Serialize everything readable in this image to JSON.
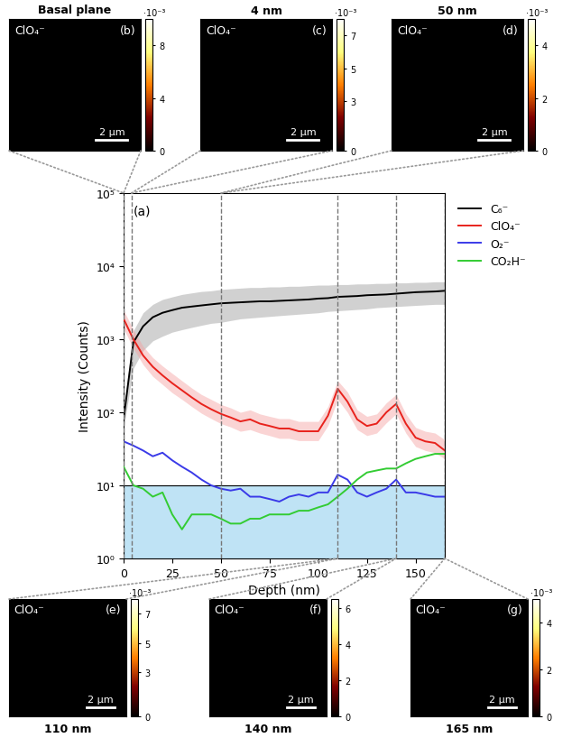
{
  "chart_data": {
    "type": "line",
    "label": "(a)",
    "x_label": "Depth (nm)",
    "y_label": "Intensity (Counts)",
    "log": "y",
    "legend": "right",
    "xlim": [
      0,
      165
    ],
    "xticks": [
      0,
      25,
      50,
      75,
      100,
      125,
      150
    ],
    "ylim": [
      1,
      100000
    ],
    "yticks": [
      {
        "value": 1,
        "label": "10⁰"
      },
      {
        "value": 10,
        "label": "10¹"
      },
      {
        "value": 100,
        "label": "10²"
      },
      {
        "value": 1000,
        "label": "10³"
      },
      {
        "value": 10000,
        "label": "10⁴"
      },
      {
        "value": 100000,
        "label": "10⁵"
      }
    ],
    "shaded_band": [
      1,
      10
    ],
    "shaded_color": "#bfe3f5",
    "x": [
      0,
      5,
      10,
      15,
      20,
      25,
      30,
      35,
      40,
      45,
      50,
      55,
      60,
      65,
      70,
      75,
      80,
      85,
      90,
      95,
      100,
      105,
      110,
      115,
      120,
      125,
      130,
      135,
      140,
      145,
      150,
      155,
      160,
      165
    ],
    "series": [
      {
        "name": "C₆⁻",
        "color": "#000000",
        "band_color": "#9a9a9a",
        "values": [
          80,
          900,
          1500,
          2000,
          2300,
          2500,
          2700,
          2800,
          2900,
          3000,
          3100,
          3150,
          3200,
          3250,
          3300,
          3300,
          3350,
          3400,
          3450,
          3500,
          3600,
          3650,
          3800,
          3850,
          3900,
          4000,
          4050,
          4100,
          4200,
          4300,
          4400,
          4450,
          4500,
          4600
        ],
        "lower": [
          60,
          400,
          700,
          950,
          1100,
          1250,
          1350,
          1450,
          1550,
          1650,
          1700,
          1800,
          1900,
          1950,
          2000,
          2050,
          2100,
          2150,
          2200,
          2250,
          2300,
          2400,
          2450,
          2500,
          2550,
          2600,
          2700,
          2750,
          2800,
          2850,
          2900,
          2950,
          3000,
          3000
        ],
        "upper": [
          100,
          1300,
          2300,
          3000,
          3500,
          3800,
          4100,
          4300,
          4500,
          4600,
          4800,
          4900,
          5000,
          5100,
          5100,
          5200,
          5200,
          5300,
          5300,
          5400,
          5500,
          5500,
          5600,
          5600,
          5700,
          5700,
          5800,
          5800,
          5900,
          5900,
          6000,
          6000,
          6100,
          6100
        ]
      },
      {
        "name": "ClO₄⁻",
        "color": "#e8221c",
        "band_color": "#f5a0a0",
        "values": [
          1900,
          1000,
          600,
          420,
          320,
          250,
          200,
          160,
          130,
          110,
          95,
          85,
          75,
          80,
          70,
          65,
          60,
          60,
          55,
          55,
          55,
          90,
          210,
          140,
          80,
          65,
          70,
          100,
          130,
          70,
          45,
          40,
          38,
          30
        ],
        "lower": [
          1400,
          750,
          450,
          310,
          240,
          185,
          150,
          120,
          97,
          82,
          70,
          63,
          55,
          58,
          52,
          48,
          44,
          44,
          41,
          41,
          41,
          66,
          150,
          100,
          58,
          48,
          52,
          72,
          95,
          52,
          34,
          30,
          28,
          23
        ],
        "upper": [
          2500,
          1350,
          800,
          560,
          430,
          340,
          270,
          215,
          175,
          150,
          128,
          115,
          100,
          108,
          95,
          88,
          82,
          82,
          75,
          75,
          75,
          120,
          270,
          190,
          108,
          88,
          95,
          135,
          175,
          95,
          62,
          55,
          52,
          42
        ]
      },
      {
        "name": "O₂⁻",
        "color": "#3a3ae8",
        "values": [
          40,
          35,
          30,
          25,
          28,
          22,
          18,
          15,
          12,
          10,
          9,
          8.5,
          9,
          7,
          7,
          6.5,
          6,
          7,
          7.5,
          7,
          8,
          8,
          14,
          12,
          8,
          7,
          8,
          9,
          12,
          8,
          8,
          7.5,
          7,
          7
        ]
      },
      {
        "name": "CO₂H⁻",
        "color": "#33cc33",
        "values": [
          18,
          10,
          9,
          7,
          8,
          4,
          2.5,
          4,
          4,
          4,
          3.5,
          3,
          3,
          3.5,
          3.5,
          4,
          4,
          4,
          4.5,
          4.5,
          5,
          5.5,
          7,
          9,
          12,
          15,
          16,
          17,
          17,
          20,
          23,
          25,
          27,
          27
        ]
      }
    ]
  },
  "panels": [
    {
      "label": "(b)",
      "title": "Basal plane",
      "species": "ClO₄⁻",
      "scale_bar": "2 μm",
      "depth": 0,
      "cbar_lim": [
        0,
        10
      ],
      "cbar_ticks": [
        0,
        4,
        8
      ],
      "cbar_multiplier": "·10⁻³"
    },
    {
      "label": "(c)",
      "title": "4 nm",
      "species": "ClO₄⁻",
      "scale_bar": "2 μm",
      "depth": 4,
      "cbar_lim": [
        0,
        8
      ],
      "cbar_ticks": [
        0,
        3,
        5,
        7
      ],
      "cbar_multiplier": "·10⁻³"
    },
    {
      "label": "(d)",
      "title": "50 nm",
      "species": "ClO₄⁻",
      "scale_bar": "2 μm",
      "depth": 50,
      "cbar_lim": [
        0,
        5
      ],
      "cbar_ticks": [
        0,
        2,
        4
      ],
      "cbar_multiplier": "·10⁻³"
    },
    {
      "label": "(e)",
      "title": "110 nm",
      "species": "ClO₄⁻",
      "scale_bar": "2 μm",
      "depth": 110,
      "cbar_lim": [
        0,
        8
      ],
      "cbar_ticks": [
        0,
        3,
        5,
        7
      ],
      "cbar_multiplier": "·10⁻³"
    },
    {
      "label": "(f)",
      "title": "140 nm",
      "species": "ClO₄⁻",
      "scale_bar": "2 μm",
      "depth": 140,
      "cbar_lim": [
        0,
        6.5
      ],
      "cbar_ticks": [
        0,
        2,
        4,
        6
      ]
    },
    {
      "label": "(g)",
      "title": "165 nm",
      "species": "ClO₄⁻",
      "scale_bar": "2 μm",
      "depth": 165,
      "cbar_lim": [
        0,
        5
      ],
      "cbar_ticks": [
        0,
        2,
        4
      ],
      "cbar_multiplier": "·10⁻³"
    }
  ]
}
